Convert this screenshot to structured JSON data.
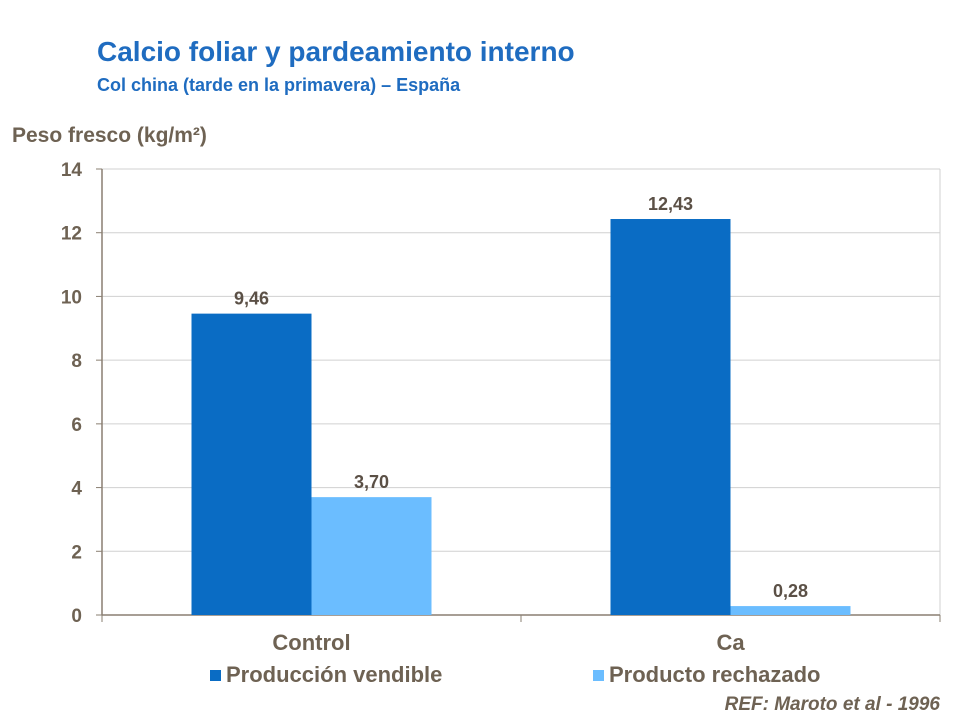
{
  "chart_data": {
    "type": "bar",
    "title": "Calcio foliar y pardeamiento interno",
    "subtitle": "Col china (tarde en la primavera) – España",
    "ylabel": "Peso fresco (kg/m²)",
    "xlabel": "",
    "ylim": [
      0,
      14
    ],
    "yticks": [
      0,
      2,
      4,
      6,
      8,
      10,
      12,
      14
    ],
    "categories": [
      "Control",
      "Ca"
    ],
    "series": [
      {
        "name": "Producción vendible",
        "color": "#0a6cc4",
        "values": [
          9.46,
          12.43
        ],
        "labels": [
          "9,46",
          "12,43"
        ]
      },
      {
        "name": "Producto rechazado",
        "color": "#6bbdff",
        "values": [
          3.7,
          0.28
        ],
        "labels": [
          "3,70",
          "0,28"
        ]
      }
    ],
    "grid": true,
    "legend": "bottom",
    "reference": "REF: Maroto et al - 1996"
  }
}
